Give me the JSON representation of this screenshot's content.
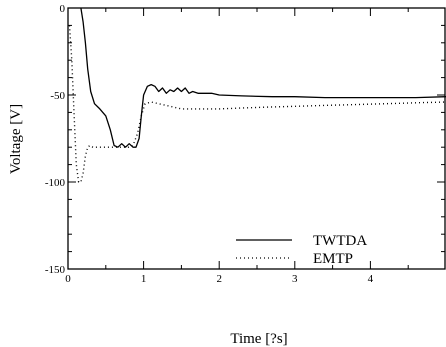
{
  "chart_data": {
    "type": "line",
    "title": "",
    "xlabel": "Time [?s]",
    "ylabel": "Voltage [V]",
    "xlim": [
      0,
      5
    ],
    "ylim": [
      -150,
      0
    ],
    "xticks": [
      0,
      1,
      2,
      3,
      4
    ],
    "yticks": [
      0,
      -50,
      -100,
      -150
    ],
    "grid": false,
    "legend": "lower-right",
    "series": [
      {
        "name": "TWTDA",
        "style": "solid",
        "color": "#000000",
        "x": [
          0.17,
          0.2,
          0.23,
          0.26,
          0.3,
          0.35,
          0.42,
          0.5,
          0.56,
          0.61,
          0.66,
          0.71,
          0.76,
          0.81,
          0.86,
          0.9,
          0.94,
          0.97,
          1.0,
          1.05,
          1.1,
          1.15,
          1.2,
          1.25,
          1.3,
          1.35,
          1.4,
          1.45,
          1.5,
          1.55,
          1.6,
          1.65,
          1.72,
          1.8,
          1.9,
          2.0,
          2.3,
          2.7,
          3.0,
          3.4,
          3.8,
          4.2,
          4.6,
          5.0
        ],
        "y": [
          0,
          -8,
          -20,
          -35,
          -48,
          -55,
          -58,
          -62,
          -70,
          -79,
          -80,
          -78,
          -80,
          -78,
          -80,
          -80,
          -75,
          -62,
          -50,
          -45,
          -44,
          -45,
          -48,
          -46,
          -49,
          -47,
          -48,
          -46,
          -48,
          -46,
          -49,
          -48,
          -49,
          -49,
          -49,
          -50,
          -50.5,
          -51,
          -51,
          -51.5,
          -51.5,
          -51.5,
          -51.5,
          -51
        ]
      },
      {
        "name": "EMTP",
        "style": "dotted",
        "color": "#000000",
        "x": [
          0.02,
          0.05,
          0.08,
          0.11,
          0.14,
          0.17,
          0.2,
          0.23,
          0.26,
          0.29,
          0.33,
          0.4,
          0.5,
          0.6,
          0.7,
          0.8,
          0.86,
          0.92,
          0.97,
          1.02,
          1.1,
          1.2,
          1.3,
          1.4,
          1.5,
          1.6,
          1.7,
          1.8,
          1.9,
          2.0,
          2.3,
          2.6,
          3.0,
          3.4,
          3.8,
          4.2,
          4.6,
          5.0
        ],
        "y": [
          -10,
          -30,
          -60,
          -90,
          -100,
          -100,
          -95,
          -85,
          -80,
          -79,
          -80,
          -80,
          -80,
          -80,
          -80,
          -80,
          -79,
          -72,
          -62,
          -55,
          -54,
          -55,
          -56,
          -57,
          -58,
          -58,
          -58,
          -58,
          -58,
          -58,
          -57.5,
          -57,
          -56.5,
          -56,
          -55.5,
          -55,
          -54.5,
          -54
        ]
      }
    ]
  }
}
